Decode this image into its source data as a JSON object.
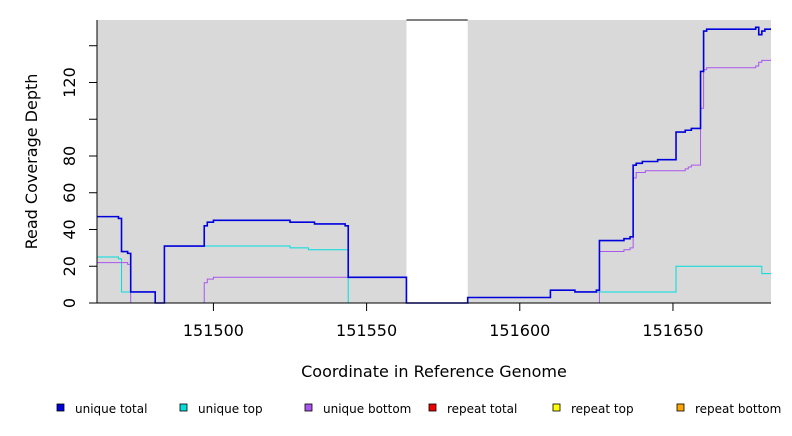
{
  "chart_data": {
    "type": "line",
    "title": "",
    "xlabel": "Coordinate in Reference Genome",
    "ylabel": "Read Coverage Depth",
    "xlim": [
      151462,
      151682
    ],
    "ylim": [
      0,
      154
    ],
    "x_ticks": [
      151500,
      151550,
      151600,
      151650
    ],
    "y_ticks": [
      0,
      20,
      40,
      60,
      80,
      100,
      120,
      140
    ],
    "y_tick_labels": [
      "0",
      "20",
      "40",
      "60",
      "80",
      "",
      "120",
      ""
    ],
    "grid": false,
    "background_color": "#d9d9d9",
    "gap_region": {
      "x_start": 151563,
      "x_end": 151583,
      "color": "#ffffff"
    },
    "legend_position": "bottom",
    "series": [
      {
        "name": "unique total",
        "color": "#0000dd",
        "step_points": [
          [
            151462,
            47
          ],
          [
            151469,
            46
          ],
          [
            151470,
            28
          ],
          [
            151472,
            27
          ],
          [
            151473,
            6
          ],
          [
            151481,
            0
          ],
          [
            151484,
            31
          ],
          [
            151496,
            31
          ],
          [
            151497,
            42
          ],
          [
            151498,
            44
          ],
          [
            151500,
            45
          ],
          [
            151525,
            44
          ],
          [
            151533,
            43
          ],
          [
            151543,
            42
          ],
          [
            151544,
            14
          ],
          [
            151563,
            0
          ],
          [
            151583,
            3
          ],
          [
            151610,
            7
          ],
          [
            151618,
            6
          ],
          [
            151625,
            7
          ],
          [
            151626,
            34
          ],
          [
            151634,
            35
          ],
          [
            151636,
            36
          ],
          [
            151637,
            75
          ],
          [
            151638,
            76
          ],
          [
            151640,
            77
          ],
          [
            151645,
            78
          ],
          [
            151651,
            93
          ],
          [
            151654,
            94
          ],
          [
            151656,
            95
          ],
          [
            151659,
            126
          ],
          [
            151660,
            148
          ],
          [
            151661,
            149
          ],
          [
            151677,
            150
          ],
          [
            151678,
            146
          ],
          [
            151679,
            148
          ],
          [
            151680,
            149
          ],
          [
            151682,
            149
          ]
        ]
      },
      {
        "name": "unique top",
        "color": "#00dddd",
        "step_points": [
          [
            151462,
            25
          ],
          [
            151469,
            24
          ],
          [
            151470,
            6
          ],
          [
            151473,
            6
          ],
          [
            151481,
            0
          ],
          [
            151484,
            31
          ],
          [
            151500,
            31
          ],
          [
            151525,
            30
          ],
          [
            151531,
            29
          ],
          [
            151543,
            29
          ],
          [
            151544,
            0
          ],
          [
            151563,
            0
          ],
          [
            151583,
            3
          ],
          [
            151610,
            7
          ],
          [
            151618,
            6
          ],
          [
            151625,
            6
          ],
          [
            151651,
            20
          ],
          [
            151679,
            16
          ],
          [
            151682,
            16
          ]
        ]
      },
      {
        "name": "unique bottom",
        "color": "#aa55ee",
        "step_points": [
          [
            151462,
            22
          ],
          [
            151472,
            21
          ],
          [
            151473,
            0
          ],
          [
            151496,
            0
          ],
          [
            151497,
            11
          ],
          [
            151498,
            13
          ],
          [
            151500,
            14
          ],
          [
            151544,
            14
          ],
          [
            151563,
            0
          ],
          [
            151625,
            0
          ],
          [
            151626,
            28
          ],
          [
            151634,
            29
          ],
          [
            151636,
            30
          ],
          [
            151637,
            68
          ],
          [
            151638,
            71
          ],
          [
            151641,
            72
          ],
          [
            151654,
            73
          ],
          [
            151655,
            74
          ],
          [
            151656,
            75
          ],
          [
            151659,
            106
          ],
          [
            151660,
            127
          ],
          [
            151661,
            128
          ],
          [
            151676,
            128
          ],
          [
            151677,
            129
          ],
          [
            151678,
            131
          ],
          [
            151679,
            132
          ],
          [
            151682,
            132
          ]
        ]
      },
      {
        "name": "repeat total",
        "color": "#ee0000",
        "step_points": [
          [
            151462,
            0
          ],
          [
            151682,
            0
          ]
        ]
      },
      {
        "name": "repeat top",
        "color": "#ffff00",
        "step_points": [
          [
            151462,
            0
          ],
          [
            151682,
            0
          ]
        ]
      },
      {
        "name": "repeat bottom",
        "color": "#ffa500",
        "step_points": [
          [
            151462,
            0
          ],
          [
            151682,
            0
          ]
        ]
      }
    ],
    "legend": [
      {
        "label": "unique total",
        "color": "#0000dd"
      },
      {
        "label": "unique top",
        "color": "#00dddd"
      },
      {
        "label": "unique bottom",
        "color": "#aa55ee"
      },
      {
        "label": "repeat total",
        "color": "#ee0000"
      },
      {
        "label": "repeat top",
        "color": "#ffff00"
      },
      {
        "label": "repeat bottom",
        "color": "#ffa500"
      }
    ]
  }
}
